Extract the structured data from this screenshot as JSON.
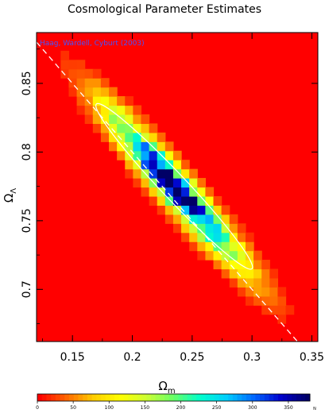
{
  "chart_data": {
    "type": "heatmap",
    "title": "Cosmological Parameter Estimates",
    "annotation": "Haag, Wardell, Cyburt (2003)",
    "xlabel_main": "Ω",
    "xlabel_sub": "m",
    "ylabel_main": "Ω",
    "ylabel_sub": "Λ",
    "xlim": [
      0.12,
      0.355
    ],
    "ylim": [
      0.662,
      0.887
    ],
    "x_ticks": [
      0.15,
      0.2,
      0.25,
      0.3,
      0.35
    ],
    "x_tick_labels": [
      "0.15",
      "0.2",
      "0.25",
      "0.3",
      "0.35"
    ],
    "y_ticks": [
      0.7,
      0.75,
      0.8,
      0.85
    ],
    "y_tick_labels": [
      "0.7",
      "0.75",
      "0.8",
      "0.85"
    ],
    "grid": false,
    "density_peak": {
      "x": 0.235,
      "y": 0.775
    },
    "dashed_line": [
      {
        "x": 0.12,
        "y": 0.88
      },
      {
        "x": 0.355,
        "y": 0.645
      }
    ],
    "ellipse": {
      "x1": 0.17,
      "y1": 0.835,
      "x2": 0.3,
      "y2": 0.715,
      "minor_halfwidth": 0.0105
    },
    "colorbar": {
      "label": "N",
      "min": 0,
      "max": 380,
      "ticks": [
        0,
        50,
        100,
        150,
        200,
        250,
        300,
        350
      ],
      "tick_labels": [
        "0",
        "50",
        "100",
        "150",
        "200",
        "250",
        "300",
        "350"
      ],
      "colors": [
        "#ff0000",
        "#ff6600",
        "#ffcc00",
        "#ffff00",
        "#ccff33",
        "#66ff66",
        "#00ffcc",
        "#00ccff",
        "#0066ff",
        "#0000cc",
        "#000066"
      ]
    }
  }
}
